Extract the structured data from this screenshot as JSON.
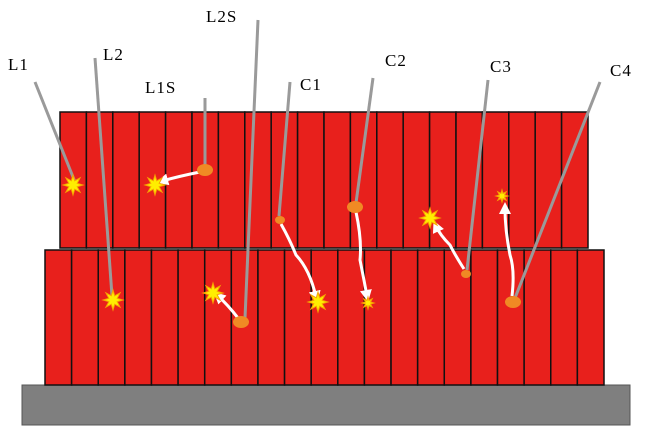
{
  "nodes": [
    {
      "label": "L1"
    },
    {
      "label": "L2"
    },
    {
      "label": "L2S"
    },
    {
      "label": "L1S"
    },
    {
      "label": "C1"
    },
    {
      "label": "C2"
    },
    {
      "label": "C3"
    },
    {
      "label": "C4"
    }
  ]
}
